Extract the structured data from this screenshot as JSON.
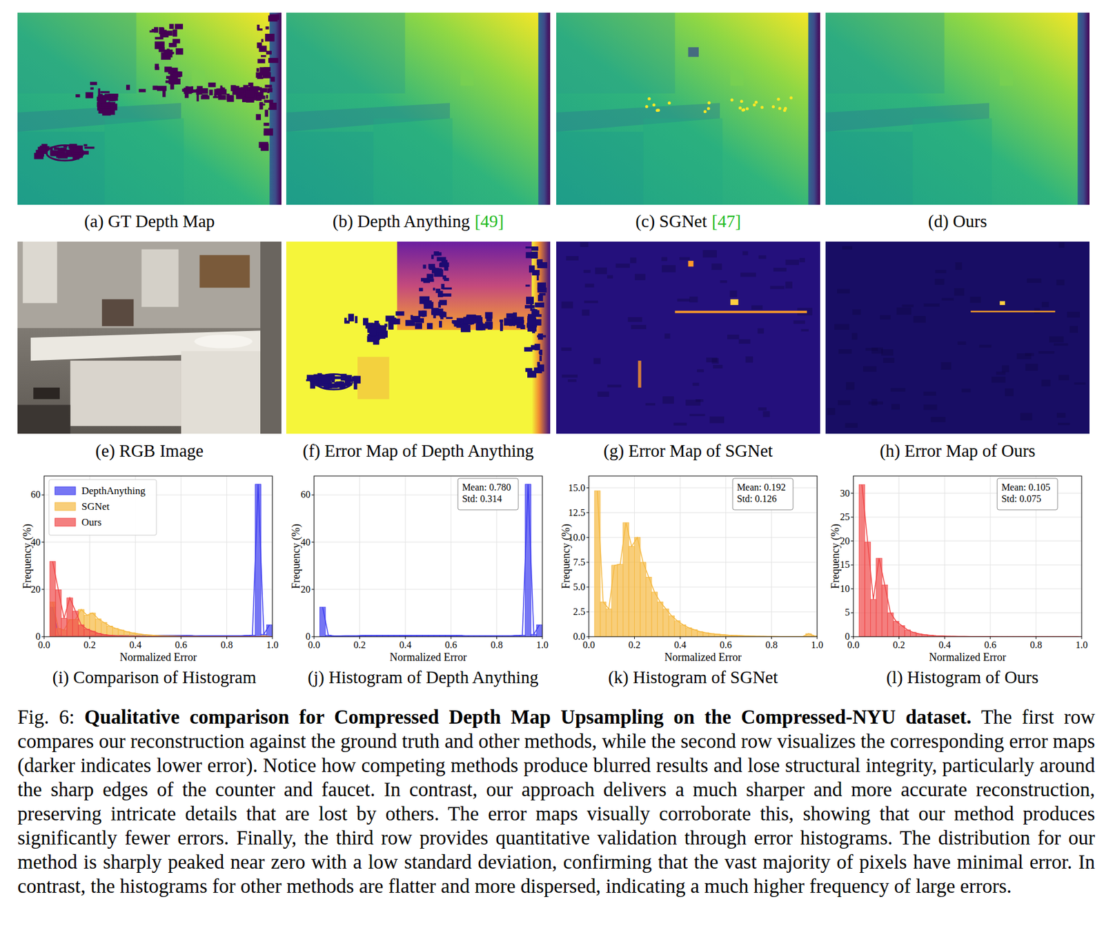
{
  "figure": {
    "panels": [
      {
        "caption": "(a) GT Depth Map"
      },
      {
        "caption": "(b) Depth Anything",
        "ref": "[49]"
      },
      {
        "caption": "(c) SGNet",
        "ref": "[47]"
      },
      {
        "caption": "(d) Ours"
      },
      {
        "caption": "(e) RGB Image"
      },
      {
        "caption": "(f) Error Map of Depth Anything"
      },
      {
        "caption": "(g) Error Map of SGNet"
      },
      {
        "caption": "(h) Error Map of Ours"
      }
    ],
    "caption": {
      "label": "Fig. 6:",
      "title": "Qualitative comparison for Compressed Depth Map Upsampling on the Compressed-NYU dataset.",
      "text": "The first row compares our reconstruction against the ground truth and other methods, while the second row visualizes the corresponding error maps (darker indicates lower error). Notice how competing methods produce blurred results and lose structural integrity, particularly around the sharp edges of the counter and faucet. In contrast, our approach delivers a much sharper and more accurate reconstruction, preserving intricate details that are lost by others. The error maps visually corroborate this, showing that our method produces significantly fewer errors. Finally, the third row provides quantitative validation through error histograms. The distribution for our method is sharply peaked near zero with a low standard deviation, confirming that the vast majority of pixels have minimal error. In contrast, the histograms for other methods are flatter and more dispersed, indicating a much higher frequency of large errors."
    }
  },
  "chart_data": [
    {
      "type": "histogram",
      "title": "(i) Comparison of Histogram",
      "x_label": "Normalized Error",
      "y_label": "Frequency (%)",
      "legend": "upper left",
      "grid": true,
      "bins": [
        0.025,
        0.05,
        0.075,
        0.1,
        0.125,
        0.15,
        0.175,
        0.2,
        0.225,
        0.25,
        0.275,
        0.3,
        0.325,
        0.35,
        0.375,
        0.4,
        0.425,
        0.45,
        0.475,
        0.5,
        0.525,
        0.55,
        0.575,
        0.6,
        0.625,
        0.65,
        0.675,
        0.7,
        0.725,
        0.75,
        0.775,
        0.8,
        0.825,
        0.85,
        0.875,
        0.9,
        0.925,
        0.95,
        0.975,
        1.0
      ],
      "series": [
        {
          "name": "DepthAnything",
          "color": "#3c3cf0",
          "values": [
            12.5,
            0.6,
            0.3,
            0.3,
            0.4,
            0.4,
            0.4,
            0.5,
            0.5,
            0.5,
            0.5,
            0.5,
            0.5,
            0.5,
            0.5,
            0.5,
            0.5,
            0.5,
            0.5,
            0.5,
            0.5,
            0.5,
            0.5,
            0.5,
            0.5,
            0.4,
            0.4,
            0.4,
            0.4,
            0.4,
            0.4,
            0.4,
            0.4,
            0.4,
            0.5,
            0.6,
            64.5,
            1.0,
            5.0
          ]
        },
        {
          "name": "SGNet",
          "color": "#f5b942",
          "values": [
            14.7,
            3.5,
            2.8,
            7.2,
            7.3,
            11.5,
            9.1,
            10.0,
            7.5,
            6.0,
            4.5,
            3.5,
            2.8,
            2.1,
            1.6,
            1.2,
            0.9,
            0.7,
            0.5,
            0.4,
            0.3,
            0.25,
            0.2,
            0.15,
            0.12,
            0.1,
            0.08,
            0.06,
            0.05,
            0.04,
            0.03,
            0.03,
            0.02,
            0.02,
            0.02,
            0.02,
            0.02,
            0.3,
            0.1
          ]
        },
        {
          "name": "Ours",
          "color": "#f04848",
          "values": [
            31.8,
            19.8,
            7.8,
            16.4,
            10.8,
            5.0,
            3.2,
            2.3,
            1.4,
            0.9,
            0.6,
            0.4,
            0.3,
            0.2,
            0.15,
            0.1,
            0.08,
            0.06,
            0.05,
            0.04,
            0.03,
            0.02,
            0.02,
            0.02,
            0.01,
            0.01,
            0.01,
            0.01,
            0.01,
            0.01,
            0.01,
            0.01,
            0.01,
            0.01,
            0.01,
            0.01,
            0.01,
            0.01,
            0.01
          ]
        }
      ],
      "xlim": [
        0,
        1
      ],
      "ylim": [
        0,
        68
      ],
      "xticks": [
        {
          "value": 0,
          "label": "0.0"
        },
        0.2,
        0.4,
        0.6,
        0.8,
        {
          "value": 1,
          "label": "1.0"
        }
      ],
      "yticks": [
        0,
        20,
        40,
        60
      ]
    },
    {
      "type": "histogram",
      "title": "(j) Histogram of Depth Anything",
      "x_label": "Normalized Error",
      "y_label": "Frequency (%)",
      "grid": true,
      "annotations": [
        "Mean: 0.780",
        "Std: 0.314"
      ],
      "bins": [
        0.025,
        0.05,
        0.075,
        0.1,
        0.125,
        0.15,
        0.175,
        0.2,
        0.225,
        0.25,
        0.275,
        0.3,
        0.325,
        0.35,
        0.375,
        0.4,
        0.425,
        0.45,
        0.475,
        0.5,
        0.525,
        0.55,
        0.575,
        0.6,
        0.625,
        0.65,
        0.675,
        0.7,
        0.725,
        0.75,
        0.775,
        0.8,
        0.825,
        0.85,
        0.875,
        0.9,
        0.925,
        0.95,
        0.975,
        1.0
      ],
      "series": [
        {
          "color": "#3c3cf0",
          "values": [
            12.5,
            0.6,
            0.3,
            0.3,
            0.4,
            0.4,
            0.4,
            0.5,
            0.5,
            0.5,
            0.5,
            0.5,
            0.5,
            0.5,
            0.5,
            0.5,
            0.5,
            0.5,
            0.5,
            0.5,
            0.5,
            0.5,
            0.5,
            0.5,
            0.5,
            0.4,
            0.4,
            0.4,
            0.4,
            0.4,
            0.4,
            0.4,
            0.4,
            0.4,
            0.5,
            0.6,
            64.5,
            1.0,
            5.0
          ]
        }
      ],
      "xlim": [
        0,
        1
      ],
      "ylim": [
        0,
        68
      ],
      "xticks": [
        {
          "value": 0,
          "label": "0.0"
        },
        0.2,
        0.4,
        0.6,
        0.8,
        {
          "value": 1,
          "label": "1.0"
        }
      ],
      "yticks": [
        0,
        20,
        40,
        60
      ]
    },
    {
      "type": "histogram",
      "title": "(k) Histogram of SGNet",
      "x_label": "Normalized Error",
      "y_label": "Frequency (%)",
      "grid": true,
      "annotations": [
        "Mean: 0.192",
        "Std: 0.126"
      ],
      "bins": [
        0.025,
        0.05,
        0.075,
        0.1,
        0.125,
        0.15,
        0.175,
        0.2,
        0.225,
        0.25,
        0.275,
        0.3,
        0.325,
        0.35,
        0.375,
        0.4,
        0.425,
        0.45,
        0.475,
        0.5,
        0.525,
        0.55,
        0.575,
        0.6,
        0.625,
        0.65,
        0.675,
        0.7,
        0.725,
        0.75,
        0.775,
        0.8,
        0.825,
        0.85,
        0.875,
        0.9,
        0.925,
        0.95,
        0.975,
        1.0
      ],
      "series": [
        {
          "color": "#f5b942",
          "values": [
            14.7,
            3.5,
            2.8,
            7.2,
            7.3,
            11.5,
            9.1,
            10.0,
            7.5,
            6.0,
            4.5,
            3.5,
            2.8,
            2.1,
            1.6,
            1.2,
            0.9,
            0.7,
            0.5,
            0.4,
            0.3,
            0.25,
            0.2,
            0.15,
            0.12,
            0.1,
            0.08,
            0.06,
            0.05,
            0.04,
            0.03,
            0.03,
            0.02,
            0.02,
            0.02,
            0.02,
            0.02,
            0.3,
            0.1
          ]
        }
      ],
      "xlim": [
        0,
        1
      ],
      "ylim": [
        0,
        16.2
      ],
      "xticks": [
        {
          "value": 0,
          "label": "0.0"
        },
        0.2,
        0.4,
        0.6,
        0.8,
        {
          "value": 1,
          "label": "1.0"
        }
      ],
      "yticks": [
        {
          "value": 0,
          "label": "0.0"
        },
        2.5,
        {
          "value": 5,
          "label": "5.0"
        },
        7.5,
        {
          "value": 10,
          "label": "10.0"
        },
        12.5,
        {
          "value": 15,
          "label": "15.0"
        }
      ]
    },
    {
      "type": "histogram",
      "title": "(l) Histogram of Ours",
      "x_label": "Normalized Error",
      "y_label": "Frequency (%)",
      "grid": true,
      "annotations": [
        "Mean: 0.105",
        "Std: 0.075"
      ],
      "bins": [
        0.025,
        0.05,
        0.075,
        0.1,
        0.125,
        0.15,
        0.175,
        0.2,
        0.225,
        0.25,
        0.275,
        0.3,
        0.325,
        0.35,
        0.375,
        0.4,
        0.425,
        0.45,
        0.475,
        0.5,
        0.525,
        0.55,
        0.575,
        0.6,
        0.625,
        0.65,
        0.675,
        0.7,
        0.725,
        0.75,
        0.775,
        0.8,
        0.825,
        0.85,
        0.875,
        0.9,
        0.925,
        0.95,
        0.975,
        1.0
      ],
      "series": [
        {
          "color": "#f04848",
          "values": [
            31.8,
            19.8,
            7.8,
            16.4,
            10.8,
            5.0,
            3.2,
            2.3,
            1.4,
            0.9,
            0.6,
            0.4,
            0.3,
            0.2,
            0.15,
            0.1,
            0.08,
            0.06,
            0.05,
            0.04,
            0.03,
            0.02,
            0.02,
            0.02,
            0.01,
            0.01,
            0.01,
            0.01,
            0.01,
            0.01,
            0.01,
            0.01,
            0.01,
            0.01,
            0.01,
            0.01,
            0.01,
            0.01,
            0.01
          ]
        }
      ],
      "xlim": [
        0,
        1
      ],
      "ylim": [
        0,
        33.6
      ],
      "xticks": [
        {
          "value": 0,
          "label": "0.0"
        },
        0.2,
        0.4,
        0.6,
        0.8,
        {
          "value": 1,
          "label": "1.0"
        }
      ],
      "yticks": [
        0,
        5,
        10,
        15,
        20,
        25,
        30
      ]
    }
  ]
}
